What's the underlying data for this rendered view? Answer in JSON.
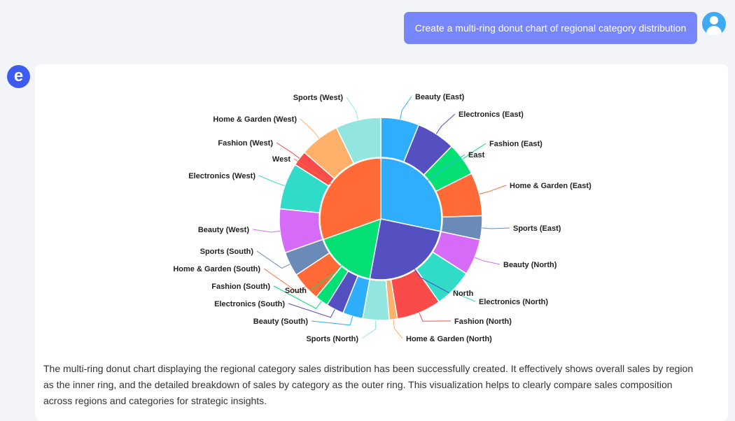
{
  "user_message": "Create a multi-ring donut chart of regional category distribution",
  "bot_avatar_glyph": "e",
  "description": "The multi-ring donut chart displaying the regional category sales distribution has been successfully created. It effectively shows overall sales by region as the inner ring, and the detailed breakdown of sales by category as the outer ring. This visualization helps to clearly compare sales composition across regions and categories for strategic insights.",
  "chart_data": {
    "type": "pie",
    "title": "",
    "inner_ring": [
      {
        "label": "East",
        "value": 28.3,
        "color": "#2eaefc"
      },
      {
        "label": "North",
        "value": 24.6,
        "color": "#5450c2"
      },
      {
        "label": "South",
        "value": 16.6,
        "color": "#05e074"
      },
      {
        "label": "West",
        "value": 30.5,
        "color": "#ff6a37"
      }
    ],
    "outer_ring": [
      {
        "label": "Beauty (East)",
        "value": 6.1,
        "color": "#2eaefc"
      },
      {
        "label": "Electronics (East)",
        "value": 6.2,
        "color": "#5450c2"
      },
      {
        "label": "Fashion (East)",
        "value": 5.3,
        "color": "#05e074"
      },
      {
        "label": "Home & Garden (East)",
        "value": 6.9,
        "color": "#ff6a37"
      },
      {
        "label": "Sports (East)",
        "value": 3.8,
        "color": "#6a8ab8"
      },
      {
        "label": "Beauty (North)",
        "value": 5.75,
        "color": "#d56bf6"
      },
      {
        "label": "Electronics (North)",
        "value": 6.2,
        "color": "#30dcc8"
      },
      {
        "label": "Fashion (North)",
        "value": 7.1,
        "color": "#f84b4a"
      },
      {
        "label": "Home & Garden (North)",
        "value": 1.3,
        "color": "#ffb06a"
      },
      {
        "label": "Sports (North)",
        "value": 4.2,
        "color": "#93e5df"
      },
      {
        "label": "Beauty (South)",
        "value": 3.2,
        "color": "#2eaefc"
      },
      {
        "label": "Electronics (South)",
        "value": 2.8,
        "color": "#5450c2"
      },
      {
        "label": "Fashion (South)",
        "value": 2.1,
        "color": "#05e074"
      },
      {
        "label": "Home & Garden (South)",
        "value": 4.7,
        "color": "#ff6a37"
      },
      {
        "label": "Sports (South)",
        "value": 3.9,
        "color": "#6a8ab8"
      },
      {
        "label": "Beauty (West)",
        "value": 7.0,
        "color": "#d56bf6"
      },
      {
        "label": "Electronics (West)",
        "value": 7.4,
        "color": "#30dcc8"
      },
      {
        "label": "Fashion (West)",
        "value": 2.4,
        "color": "#f84b4a"
      },
      {
        "label": "Home & Garden (West)",
        "value": 6.4,
        "color": "#ffb06a"
      },
      {
        "label": "Sports (West)",
        "value": 7.2,
        "color": "#93e5df"
      }
    ]
  }
}
